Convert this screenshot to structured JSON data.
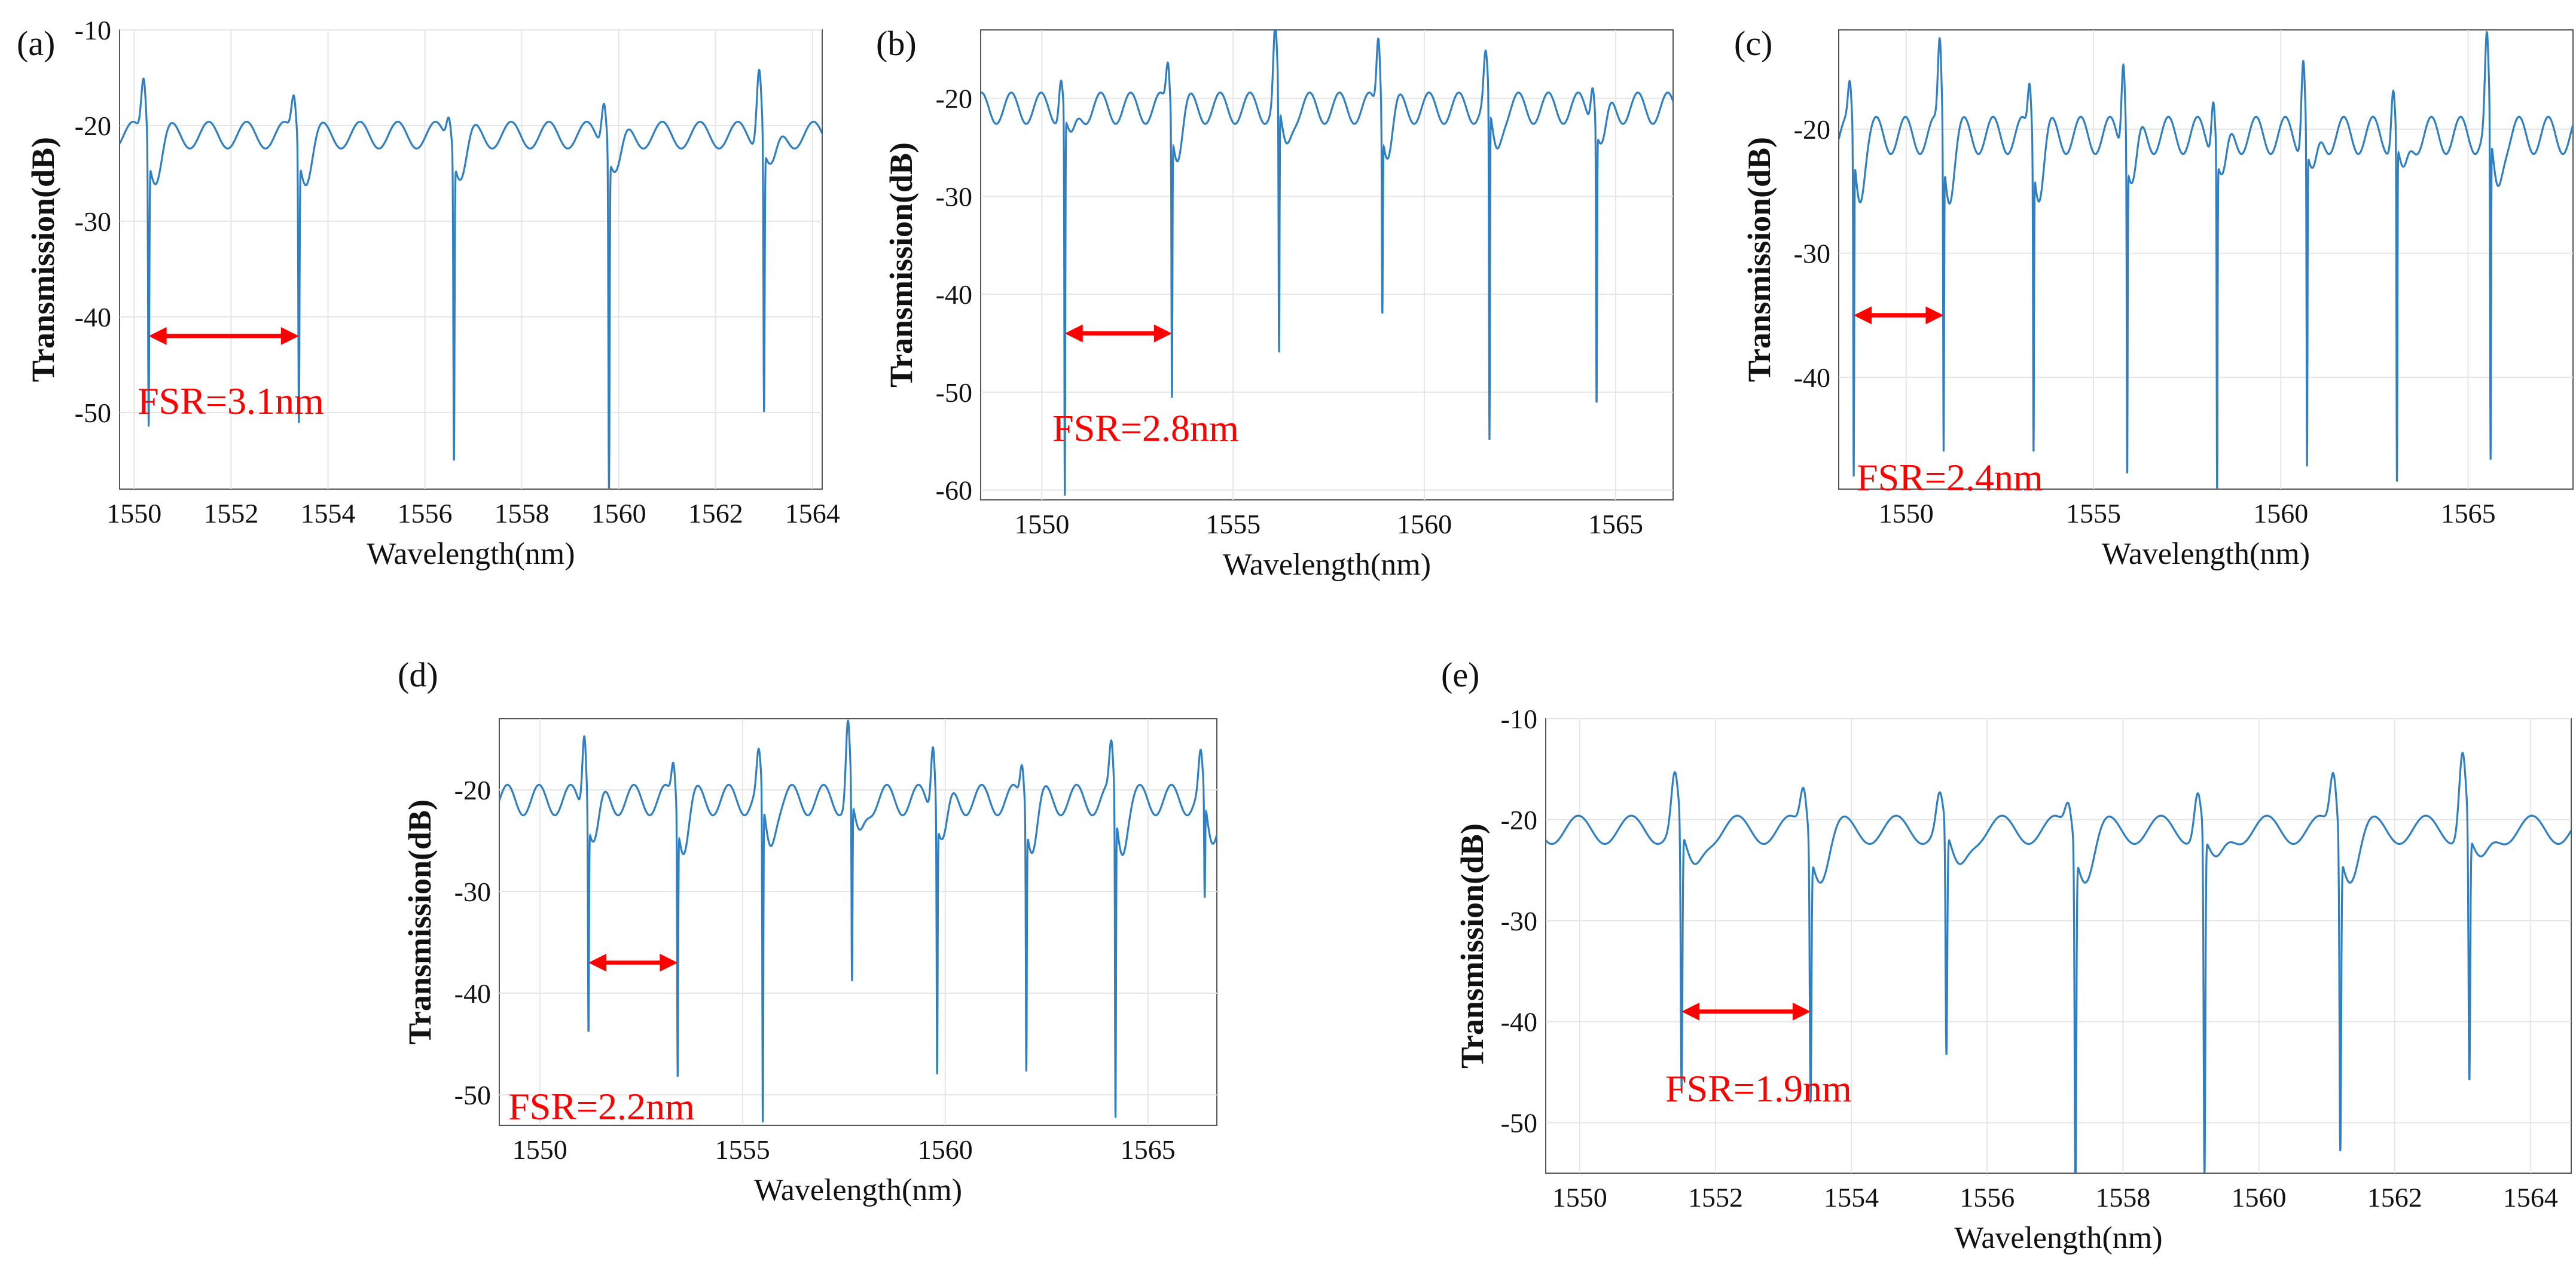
{
  "figure": {
    "description_panels": [
      "(a)",
      "(b)",
      "(c)",
      "(d)",
      "(e)"
    ]
  },
  "colors": {
    "line": "#2f7fc1",
    "annotation": "#ff0000",
    "grid": "#e6e6e6",
    "axis": "#555555",
    "text": "#111111"
  },
  "chart_data": [
    {
      "panel_label": "(a)",
      "type": "line",
      "xlabel": "Wavelength(nm)",
      "ylabel": "Transmission(dB)",
      "xlim": [
        1549.7,
        1564.2
      ],
      "ylim": [
        -58,
        -10
      ],
      "xticks": [
        1550,
        1552,
        1554,
        1556,
        1558,
        1560,
        1562,
        1564
      ],
      "yticks": [
        -10,
        -20,
        -30,
        -40,
        -50
      ],
      "baseline": -21,
      "ripple": 1.4,
      "dips": [
        {
          "x": 1550.3,
          "y": -49.5,
          "peak": -14.5
        },
        {
          "x": 1553.4,
          "y": -49,
          "peak": -16.5
        },
        {
          "x": 1556.6,
          "y": -52.5,
          "peak": -18
        },
        {
          "x": 1559.8,
          "y": -56,
          "peak": -16
        },
        {
          "x": 1563.0,
          "y": -49,
          "peak": -12.5
        }
      ],
      "fsr": {
        "x1": 1550.3,
        "x2": 1553.4,
        "y": -42,
        "label": "FSR=3.1nm"
      }
    },
    {
      "panel_label": "(b)",
      "type": "line",
      "xlabel": "Wavelength(nm)",
      "ylabel": "Transmission(dB)",
      "xlim": [
        1548.4,
        1566.5
      ],
      "ylim": [
        -61,
        -13
      ],
      "xticks": [
        1550,
        1555,
        1560,
        1565
      ],
      "yticks": [
        -20,
        -30,
        -40,
        -50,
        -60
      ],
      "baseline": -21,
      "ripple": 1.6,
      "dips": [
        {
          "x": 1550.6,
          "y": -60,
          "peak": -17
        },
        {
          "x": 1553.4,
          "y": -48.5,
          "peak": -16
        },
        {
          "x": 1556.2,
          "y": -47,
          "peak": -13
        },
        {
          "x": 1558.9,
          "y": -40,
          "peak": -13
        },
        {
          "x": 1561.7,
          "y": -55.5,
          "peak": -16
        },
        {
          "x": 1564.5,
          "y": -49,
          "peak": -17
        }
      ],
      "fsr": {
        "x1": 1550.6,
        "x2": 1553.4,
        "y": -44,
        "label": "FSR=2.8nm"
      }
    },
    {
      "panel_label": "(c)",
      "type": "line",
      "xlabel": "Wavelength(nm)",
      "ylabel": "Transmission(dB)",
      "xlim": [
        1548.2,
        1567.8
      ],
      "ylim": [
        -49,
        -12
      ],
      "xticks": [
        1550,
        1555,
        1560,
        1565
      ],
      "yticks": [
        -20,
        -30,
        -40
      ],
      "baseline": -20.5,
      "ripple": 1.5,
      "dips": [
        {
          "x": 1548.6,
          "y": -47,
          "peak": -17
        },
        {
          "x": 1551.0,
          "y": -45,
          "peak": -13
        },
        {
          "x": 1553.4,
          "y": -44,
          "peak": -16
        },
        {
          "x": 1555.9,
          "y": -46,
          "peak": -13
        },
        {
          "x": 1558.3,
          "y": -47.5,
          "peak": -16
        },
        {
          "x": 1560.7,
          "y": -46.5,
          "peak": -13
        },
        {
          "x": 1563.1,
          "y": -48,
          "peak": -16
        },
        {
          "x": 1565.6,
          "y": -47.5,
          "peak": -13
        }
      ],
      "fsr": {
        "x1": 1548.6,
        "x2": 1551.0,
        "y": -35,
        "label": "FSR=2.4nm"
      }
    },
    {
      "panel_label": "(d)",
      "type": "line",
      "xlabel": "Wavelength(nm)",
      "ylabel": "Transmission(dB)",
      "xlim": [
        1549.0,
        1566.7
      ],
      "ylim": [
        -53,
        -13
      ],
      "xticks": [
        1550,
        1555,
        1560,
        1565
      ],
      "yticks": [
        -20,
        -30,
        -40,
        -50
      ],
      "baseline": -21,
      "ripple": 1.5,
      "dips": [
        {
          "x": 1551.2,
          "y": -42,
          "peak": -13
        },
        {
          "x": 1553.4,
          "y": -46,
          "peak": -17
        },
        {
          "x": 1555.5,
          "y": -53,
          "peak": -17
        },
        {
          "x": 1557.7,
          "y": -39.5,
          "peak": -13
        },
        {
          "x": 1559.8,
          "y": -46,
          "peak": -14
        },
        {
          "x": 1562.0,
          "y": -45.5,
          "peak": -17
        },
        {
          "x": 1564.2,
          "y": -51.5,
          "peak": -16
        },
        {
          "x": 1566.4,
          "y": -31,
          "peak": -17
        }
      ],
      "fsr": {
        "x1": 1551.2,
        "x2": 1553.4,
        "y": -37,
        "label": "FSR=2.2nm"
      }
    },
    {
      "panel_label": "(e)",
      "type": "line",
      "xlabel": "Wavelength(nm)",
      "ylabel": "Transmission(dB)",
      "xlim": [
        1549.5,
        1564.6
      ],
      "ylim": [
        -55,
        -10
      ],
      "xticks": [
        1550,
        1552,
        1554,
        1556,
        1558,
        1560,
        1562,
        1564
      ],
      "yticks": [
        -10,
        -20,
        -30,
        -40,
        -50
      ],
      "baseline": -21,
      "ripple": 1.4,
      "dips": [
        {
          "x": 1551.5,
          "y": -47,
          "peak": -15.5
        },
        {
          "x": 1553.4,
          "y": -46,
          "peak": -16.5
        },
        {
          "x": 1555.4,
          "y": -43.5,
          "peak": -17.5
        },
        {
          "x": 1557.3,
          "y": -55,
          "peak": -18
        },
        {
          "x": 1559.2,
          "y": -55,
          "peak": -16.5
        },
        {
          "x": 1561.2,
          "y": -51,
          "peak": -15
        },
        {
          "x": 1563.1,
          "y": -46,
          "peak": -12.5
        }
      ],
      "fsr": {
        "x1": 1551.5,
        "x2": 1553.4,
        "y": -39,
        "label": "FSR=1.9nm"
      }
    }
  ]
}
